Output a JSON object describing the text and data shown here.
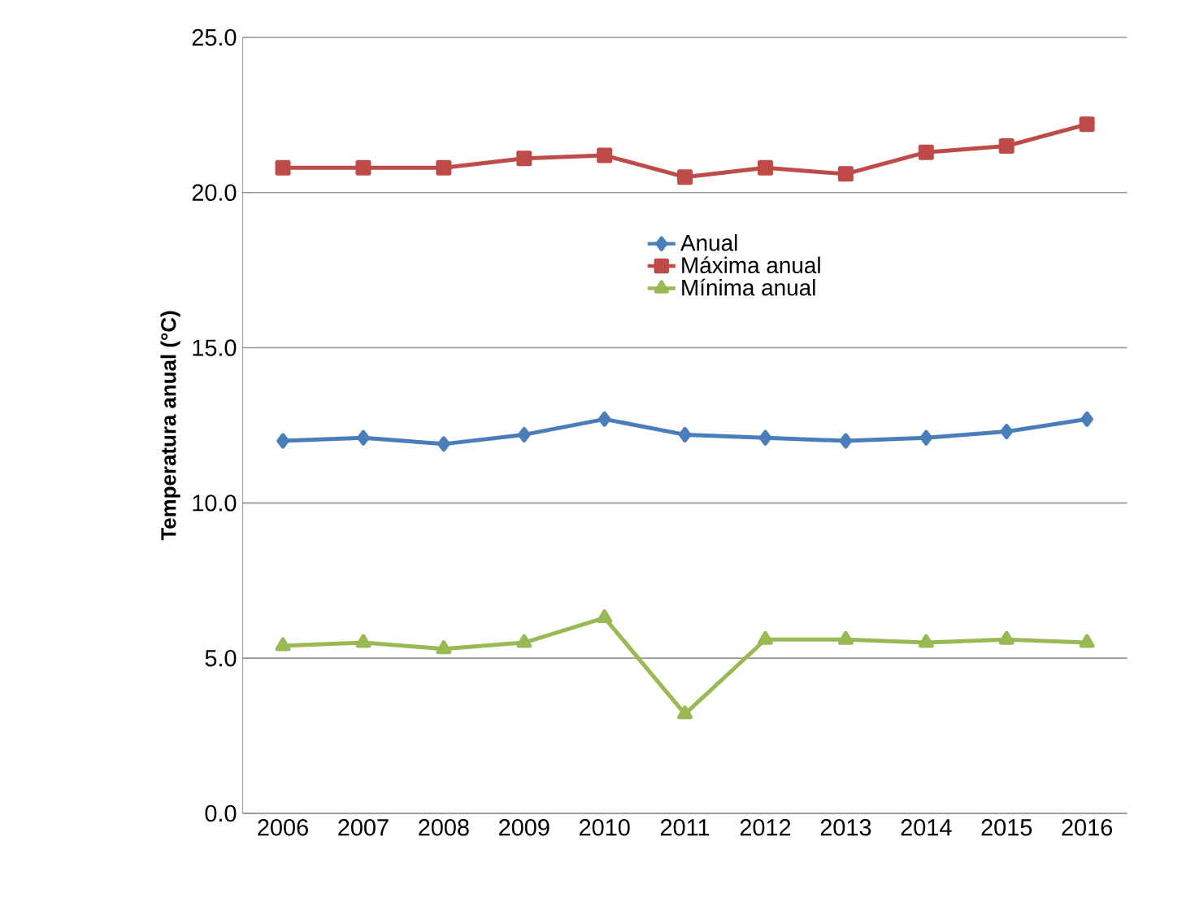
{
  "chart_data": {
    "type": "line",
    "ylabel": "Temperatura anual (°C)",
    "categories": [
      "2006",
      "2007",
      "2008",
      "2009",
      "2010",
      "2011",
      "2012",
      "2013",
      "2014",
      "2015",
      "2016"
    ],
    "series": [
      {
        "name": "Anual",
        "color": "#4a7ebb",
        "marker": "diamond",
        "values": [
          12.0,
          12.1,
          11.9,
          12.2,
          12.7,
          12.2,
          12.1,
          12.0,
          12.1,
          12.3,
          12.7
        ]
      },
      {
        "name": "Máxima anual",
        "color": "#be4b48",
        "marker": "square",
        "values": [
          20.8,
          20.8,
          20.8,
          21.1,
          21.2,
          20.5,
          20.8,
          20.6,
          21.3,
          21.5,
          22.2
        ]
      },
      {
        "name": "Mínima anual",
        "color": "#98b954",
        "marker": "triangle",
        "values": [
          5.4,
          5.5,
          5.3,
          5.5,
          6.3,
          3.2,
          5.6,
          5.6,
          5.5,
          5.6,
          5.5
        ]
      }
    ],
    "ylim": [
      0,
      25
    ],
    "yticks": [
      {
        "value": 0,
        "label": "0.0"
      },
      {
        "value": 5,
        "label": "5.0"
      },
      {
        "value": 10,
        "label": "10.0"
      },
      {
        "value": 15,
        "label": "15.0"
      },
      {
        "value": 20,
        "label": "20.0"
      },
      {
        "value": 25,
        "label": "25.0"
      }
    ],
    "grid": "y",
    "legend": "top right",
    "line_style": "solid"
  }
}
